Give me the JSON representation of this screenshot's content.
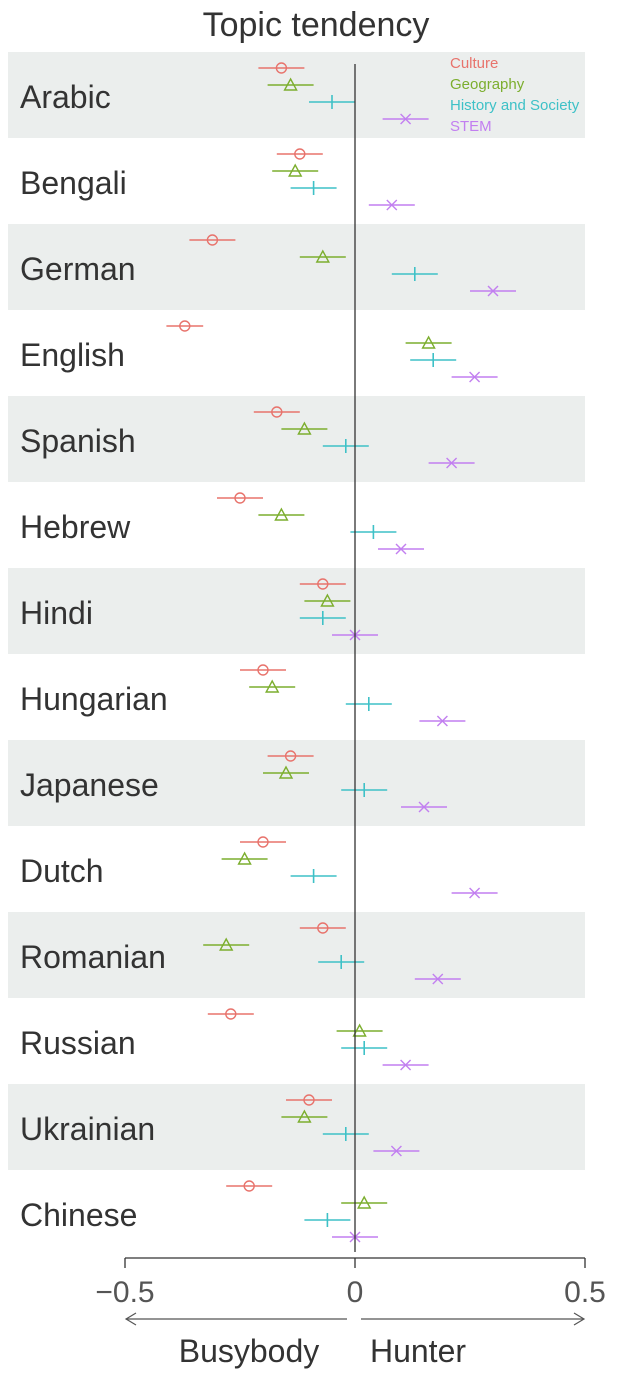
{
  "chart_data": {
    "type": "dot-errorbar",
    "title": "Topic tendency",
    "xlabel_left": "Busybody",
    "xlabel_right": "Hunter",
    "xlim": [
      -0.5,
      0.5
    ],
    "xticks": [
      -0.5,
      0,
      0.5
    ],
    "xtick_labels": [
      "−0.5",
      "0",
      "0.5"
    ],
    "legend_position": "top-right",
    "categories": [
      "Arabic",
      "Bengali",
      "German",
      "English",
      "Spanish",
      "Hebrew",
      "Hindi",
      "Hungarian",
      "Japanese",
      "Dutch",
      "Romanian",
      "Russian",
      "Ukrainian",
      "Chinese"
    ],
    "series": [
      {
        "name": "Culture",
        "color": "#e8736c",
        "marker": "circle",
        "values": [
          -0.16,
          -0.12,
          -0.31,
          -0.37,
          -0.17,
          -0.25,
          -0.07,
          -0.2,
          -0.14,
          -0.2,
          -0.07,
          -0.27,
          -0.1,
          -0.23
        ],
        "errors": [
          0.05,
          0.05,
          0.05,
          0.04,
          0.05,
          0.05,
          0.05,
          0.05,
          0.05,
          0.05,
          0.05,
          0.05,
          0.05,
          0.05
        ]
      },
      {
        "name": "Geography",
        "color": "#7cae2e",
        "marker": "triangle",
        "values": [
          -0.14,
          -0.13,
          -0.07,
          0.16,
          -0.11,
          -0.16,
          -0.06,
          -0.18,
          -0.15,
          -0.24,
          -0.28,
          0.01,
          -0.11,
          0.02
        ],
        "errors": [
          0.05,
          0.05,
          0.05,
          0.05,
          0.05,
          0.05,
          0.05,
          0.05,
          0.05,
          0.05,
          0.05,
          0.05,
          0.05,
          0.05
        ]
      },
      {
        "name": "History and Society",
        "color": "#3ec1c7",
        "marker": "vline",
        "values": [
          -0.05,
          -0.09,
          0.13,
          0.17,
          -0.02,
          0.04,
          -0.07,
          0.03,
          0.02,
          -0.09,
          -0.03,
          0.02,
          -0.02,
          -0.06
        ],
        "errors": [
          0.05,
          0.05,
          0.05,
          0.05,
          0.05,
          0.05,
          0.05,
          0.05,
          0.05,
          0.05,
          0.05,
          0.05,
          0.05,
          0.05
        ]
      },
      {
        "name": "STEM",
        "color": "#c27ff0",
        "marker": "x",
        "values": [
          0.11,
          0.08,
          0.3,
          0.26,
          0.21,
          0.1,
          0.0,
          0.19,
          0.15,
          0.26,
          0.18,
          0.11,
          0.09,
          0.0
        ],
        "errors": [
          0.05,
          0.05,
          0.05,
          0.05,
          0.05,
          0.05,
          0.05,
          0.05,
          0.05,
          0.05,
          0.05,
          0.05,
          0.05,
          0.05
        ]
      }
    ]
  },
  "colors": {
    "band": "#ebeeed",
    "axis": "#333333"
  }
}
